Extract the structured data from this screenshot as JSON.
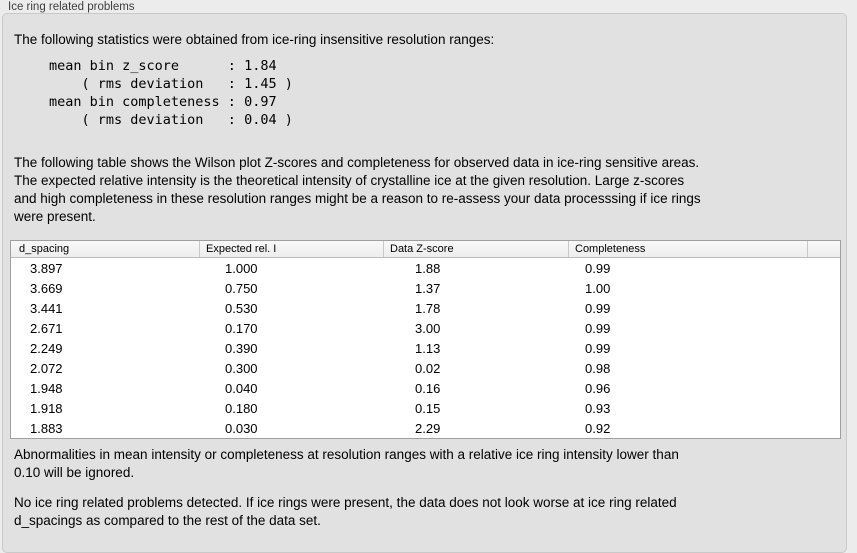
{
  "panel": {
    "title": "Ice ring related problems",
    "intro": "The following statistics were obtained from ice-ring insensitive resolution ranges:",
    "stats_block": "mean bin z_score      : 1.84\n    ( rms deviation   : 1.45 )\nmean bin completeness : 0.97\n    ( rms deviation   : 0.04 )",
    "table_description": "The following table shows the Wilson plot Z-scores and completeness for observed data in ice-ring sensitive areas.\nThe expected relative intensity is the theoretical intensity of crystalline ice at the given resolution. Large z-scores\nand high completeness in these resolution ranges might be a reason to re-assess your data processsing if ice rings\nwere present.",
    "table": {
      "columns": [
        "d_spacing",
        "Expected rel. I",
        "Data Z-score",
        "Completeness"
      ],
      "rows": [
        [
          "3.897",
          "1.000",
          "1.88",
          "0.99"
        ],
        [
          "3.669",
          "0.750",
          "1.37",
          "1.00"
        ],
        [
          "3.441",
          "0.530",
          "1.78",
          "0.99"
        ],
        [
          "2.671",
          "0.170",
          "3.00",
          "0.99"
        ],
        [
          "2.249",
          "0.390",
          "1.13",
          "0.99"
        ],
        [
          "2.072",
          "0.300",
          "0.02",
          "0.98"
        ],
        [
          "1.948",
          "0.040",
          "0.16",
          "0.96"
        ],
        [
          "1.918",
          "0.180",
          "0.15",
          "0.93"
        ],
        [
          "1.883",
          "0.030",
          "2.29",
          "0.92"
        ]
      ]
    },
    "ignore_note": "Abnormalities in mean intensity or completeness at resolution ranges with a relative ice ring intensity lower than\n0.10 will be ignored.",
    "conclusion": "No ice ring related problems detected. If ice rings were present, the data does not look worse at ice ring related\nd_spacings as compared to the rest of the data set."
  },
  "colors": {
    "page_bg": "#ececec",
    "box_bg": "#e1e1e1",
    "box_border": "#c9c9c9",
    "label_color": "#3e3e3e",
    "table_border": "#9f9f9f",
    "header_bg_top": "#f8f8f8",
    "header_bg_bottom": "#ededed",
    "header_border": "#bdbdbd",
    "header_divider": "#c8c8c8"
  }
}
